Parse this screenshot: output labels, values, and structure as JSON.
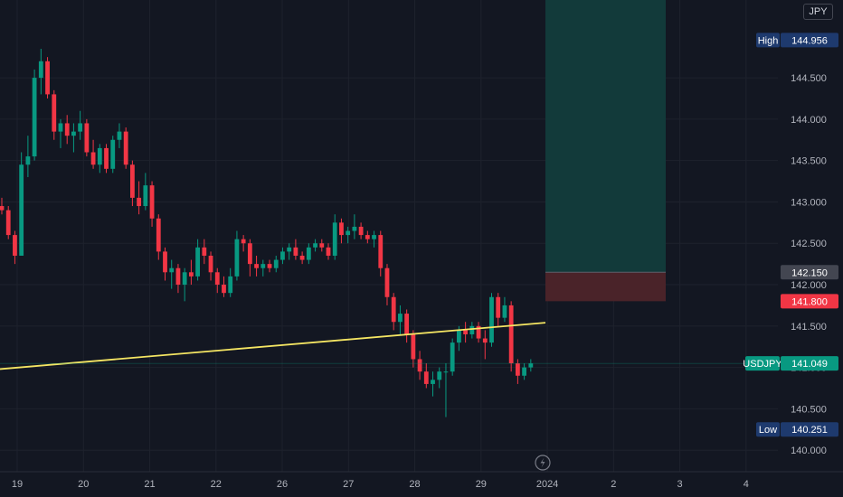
{
  "instrument": {
    "symbol": "USDJPY",
    "currency": "JPY"
  },
  "chart_data": {
    "type": "candlestick",
    "y_axis": {
      "ticks": [
        140.0,
        140.5,
        141.0,
        141.5,
        142.0,
        142.5,
        143.0,
        143.5,
        144.0,
        144.5
      ],
      "ylim": [
        139.74,
        145.44
      ]
    },
    "x_axis": {
      "ticks": [
        {
          "label": "19",
          "slot": 0
        },
        {
          "label": "20",
          "slot": 9
        },
        {
          "label": "21",
          "slot": 18
        },
        {
          "label": "22",
          "slot": 27
        },
        {
          "label": "26",
          "slot": 36
        },
        {
          "label": "27",
          "slot": 45
        },
        {
          "label": "28",
          "slot": 54
        },
        {
          "label": "29",
          "slot": 63
        },
        {
          "label": "2024",
          "slot": 72
        },
        {
          "label": "2",
          "slot": 81
        },
        {
          "label": "3",
          "slot": 90
        },
        {
          "label": "4",
          "slot": 99
        }
      ]
    },
    "candles_ohlc": [
      [
        142.95,
        143.05,
        142.85,
        142.9
      ],
      [
        142.9,
        142.95,
        142.55,
        142.6
      ],
      [
        142.6,
        142.65,
        142.25,
        142.35
      ],
      [
        142.35,
        143.6,
        142.35,
        143.45
      ],
      [
        143.45,
        143.8,
        143.3,
        143.55
      ],
      [
        143.55,
        144.6,
        143.5,
        144.5
      ],
      [
        144.5,
        144.85,
        144.3,
        144.7
      ],
      [
        144.7,
        144.75,
        144.25,
        144.3
      ],
      [
        144.3,
        144.35,
        143.75,
        143.85
      ],
      [
        143.85,
        144.0,
        143.65,
        143.95
      ],
      [
        143.95,
        144.05,
        143.7,
        143.8
      ],
      [
        143.8,
        143.95,
        143.6,
        143.85
      ],
      [
        143.85,
        144.1,
        143.75,
        143.95
      ],
      [
        143.95,
        144.0,
        143.55,
        143.6
      ],
      [
        143.6,
        143.75,
        143.4,
        143.45
      ],
      [
        143.45,
        143.7,
        143.35,
        143.65
      ],
      [
        143.65,
        143.7,
        143.35,
        143.4
      ],
      [
        143.4,
        143.8,
        143.35,
        143.75
      ],
      [
        143.75,
        143.95,
        143.65,
        143.85
      ],
      [
        143.85,
        143.9,
        143.4,
        143.45
      ],
      [
        143.45,
        143.5,
        142.95,
        143.05
      ],
      [
        143.05,
        143.25,
        142.85,
        142.95
      ],
      [
        142.95,
        143.35,
        142.9,
        143.2
      ],
      [
        143.2,
        143.25,
        142.7,
        142.8
      ],
      [
        142.8,
        142.85,
        142.3,
        142.4
      ],
      [
        142.4,
        142.45,
        142.05,
        142.15
      ],
      [
        142.15,
        142.3,
        141.95,
        142.2
      ],
      [
        142.2,
        142.25,
        141.9,
        142.0
      ],
      [
        142.0,
        142.2,
        141.8,
        142.15
      ],
      [
        142.15,
        142.3,
        142.0,
        142.1
      ],
      [
        142.1,
        142.55,
        142.05,
        142.45
      ],
      [
        142.45,
        142.55,
        142.25,
        142.35
      ],
      [
        142.35,
        142.4,
        142.05,
        142.15
      ],
      [
        142.15,
        142.2,
        141.9,
        142.0
      ],
      [
        142.0,
        142.1,
        141.85,
        141.9
      ],
      [
        141.9,
        142.2,
        141.85,
        142.1
      ],
      [
        142.1,
        142.65,
        142.05,
        142.55
      ],
      [
        142.55,
        142.6,
        142.4,
        142.5
      ],
      [
        142.5,
        142.55,
        142.1,
        142.25
      ],
      [
        142.25,
        142.35,
        142.1,
        142.2
      ],
      [
        142.2,
        142.3,
        142.1,
        142.25
      ],
      [
        142.25,
        142.3,
        142.15,
        142.2
      ],
      [
        142.2,
        142.35,
        142.15,
        142.3
      ],
      [
        142.3,
        142.45,
        142.25,
        142.4
      ],
      [
        142.4,
        142.5,
        142.3,
        142.45
      ],
      [
        142.45,
        142.55,
        142.3,
        142.35
      ],
      [
        142.35,
        142.4,
        142.25,
        142.3
      ],
      [
        142.3,
        142.5,
        142.25,
        142.45
      ],
      [
        142.45,
        142.55,
        142.4,
        142.5
      ],
      [
        142.5,
        142.55,
        142.4,
        142.45
      ],
      [
        142.45,
        142.5,
        142.3,
        142.35
      ],
      [
        142.35,
        142.85,
        142.3,
        142.75
      ],
      [
        142.75,
        142.8,
        142.5,
        142.6
      ],
      [
        142.6,
        142.7,
        142.5,
        142.65
      ],
      [
        142.65,
        142.85,
        142.55,
        142.7
      ],
      [
        142.7,
        142.75,
        142.55,
        142.6
      ],
      [
        142.6,
        142.65,
        142.5,
        142.55
      ],
      [
        142.55,
        142.65,
        142.45,
        142.6
      ],
      [
        142.6,
        142.65,
        142.1,
        142.2
      ],
      [
        142.2,
        142.25,
        141.75,
        141.85
      ],
      [
        141.85,
        141.9,
        141.45,
        141.55
      ],
      [
        141.55,
        141.75,
        141.4,
        141.65
      ],
      [
        141.65,
        141.7,
        141.3,
        141.4
      ],
      [
        141.4,
        141.45,
        141.0,
        141.1
      ],
      [
        141.1,
        141.2,
        140.85,
        140.95
      ],
      [
        140.95,
        141.05,
        140.75,
        140.8
      ],
      [
        140.8,
        140.95,
        140.65,
        140.85
      ],
      [
        140.85,
        141.0,
        140.75,
        140.95
      ],
      [
        140.95,
        141.05,
        140.4,
        140.95
      ],
      [
        140.95,
        141.35,
        140.9,
        141.3
      ],
      [
        141.3,
        141.5,
        141.2,
        141.45
      ],
      [
        141.45,
        141.55,
        141.3,
        141.4
      ],
      [
        141.4,
        141.55,
        141.35,
        141.5
      ],
      [
        141.5,
        141.55,
        141.3,
        141.35
      ],
      [
        141.35,
        141.45,
        141.1,
        141.3
      ],
      [
        141.3,
        141.9,
        141.25,
        141.85
      ],
      [
        141.85,
        141.9,
        141.5,
        141.6
      ],
      [
        141.6,
        141.85,
        141.55,
        141.75
      ],
      [
        141.75,
        141.8,
        140.95,
        141.05
      ],
      [
        141.05,
        141.1,
        140.8,
        140.9
      ],
      [
        140.9,
        141.05,
        140.85,
        141.0
      ],
      [
        141.0,
        141.1,
        140.95,
        141.049
      ]
    ],
    "trendline": {
      "color": "#f5e663",
      "from_price": 140.98,
      "to_price": 141.54
    },
    "position": {
      "profit_color": "#123a3a",
      "loss_color": "#4a2329",
      "profit_top": 145.44,
      "entry": 142.15,
      "stop": 141.8
    },
    "price_tags": [
      {
        "label": "High",
        "value": "144.956",
        "price": 144.956,
        "bg": "#1e3a6e",
        "fg": "#ffffff"
      },
      {
        "label": "",
        "value": "142.150",
        "price": 142.15,
        "bg": "#434651",
        "fg": "#ffffff"
      },
      {
        "label": "",
        "value": "141.800",
        "price": 141.8,
        "bg": "#f23645",
        "fg": "#ffffff"
      },
      {
        "label": "USDJPY",
        "value": "141.049",
        "price": 141.049,
        "bg": "#089981",
        "fg": "#ffffff"
      },
      {
        "label": "Low",
        "value": "140.251",
        "price": 140.251,
        "bg": "#1e3a6e",
        "fg": "#ffffff"
      }
    ],
    "colors": {
      "up": "#089981",
      "down": "#f23645",
      "background": "#131722",
      "grid": "#1e222d"
    }
  }
}
